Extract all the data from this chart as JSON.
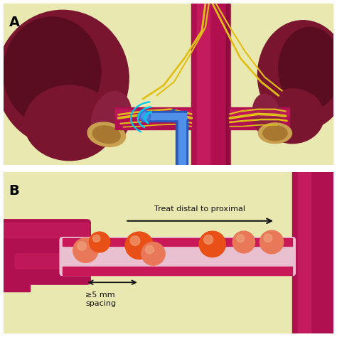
{
  "bg_color": "#e8e8b0",
  "kidney_color": "#7a1530",
  "kidney_dark": "#5a0d20",
  "kidney_mid": "#8a2040",
  "artery_color": "#b01050",
  "artery_bright": "#cc2060",
  "artery_dark": "#7a0830",
  "nerve_color": "#e8c820",
  "nerve_dark": "#c8a800",
  "catheter_outer": "#2858b8",
  "catheter_inner": "#5090e8",
  "catheter_tip": "#4070d0",
  "adrenal_color": "#c8a050",
  "adrenal_dark": "#a87830",
  "ultrasound_color": "#00c8e8",
  "ultrasound_2": "#20aacc",
  "ultrasound_3": "#40ccee",
  "tube_fill": "#e8c0d0",
  "tube_wall": "#c81858",
  "dot_orange": "#e85018",
  "dot_light": "#e87858",
  "dot_highlight": "#f0a880",
  "white_div": "#ffffff",
  "text_color": "#111111",
  "label_color": "#000000",
  "text_distal": "Treat distal to proximal",
  "text_spacing": "≥5 mm\nspacing",
  "label_A": "A",
  "label_B": "B"
}
